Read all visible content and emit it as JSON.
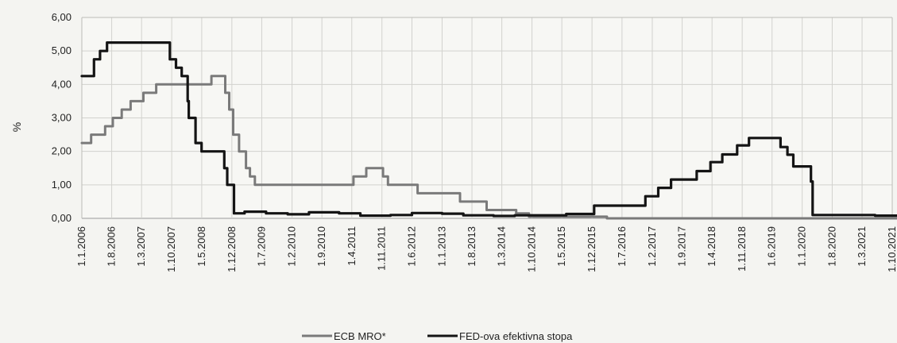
{
  "chart_data": {
    "type": "line",
    "ylabel": "%",
    "ylim": [
      0,
      6
    ],
    "y_ticks": [
      "0,00",
      "1,00",
      "2,00",
      "3,00",
      "4,00",
      "5,00",
      "6,00"
    ],
    "x_ticks": [
      "1.1.2006",
      "1.8.2006",
      "1.3.2007",
      "1.10.2007",
      "1.5.2008",
      "1.12.2008",
      "1.7.2009",
      "1.2.2010",
      "1.9.2010",
      "1.4.2011",
      "1.11.2011",
      "1.6.2012",
      "1.1.2013",
      "1.8.2013",
      "1.3.2014",
      "1.10.2014",
      "1.5.2015",
      "1.12.2015",
      "1.7.2016",
      "1.2.2017",
      "1.9.2017",
      "1.4.2018",
      "1.11.2018",
      "1.6.2019",
      "1.1.2020",
      "1.8.2020",
      "1.3.2021",
      "1.10.2021"
    ],
    "grid": true,
    "legend_position": "bottom-center",
    "series": [
      {
        "name": "ECB MRO*",
        "color": "#7a7a7a",
        "points": [
          [
            "2006-01-01",
            2.25
          ],
          [
            "2006-03-08",
            2.5
          ],
          [
            "2006-06-15",
            2.75
          ],
          [
            "2006-08-09",
            3.0
          ],
          [
            "2006-10-11",
            3.25
          ],
          [
            "2006-12-13",
            3.5
          ],
          [
            "2007-03-14",
            3.75
          ],
          [
            "2007-06-13",
            4.0
          ],
          [
            "2008-07-09",
            4.25
          ],
          [
            "2008-10-15",
            3.75
          ],
          [
            "2008-11-12",
            3.25
          ],
          [
            "2008-12-10",
            2.5
          ],
          [
            "2009-01-21",
            2.0
          ],
          [
            "2009-03-11",
            1.5
          ],
          [
            "2009-04-08",
            1.25
          ],
          [
            "2009-05-13",
            1.0
          ],
          [
            "2011-04-13",
            1.25
          ],
          [
            "2011-07-13",
            1.5
          ],
          [
            "2011-11-09",
            1.25
          ],
          [
            "2011-12-14",
            1.0
          ],
          [
            "2012-07-11",
            0.75
          ],
          [
            "2013-05-08",
            0.5
          ],
          [
            "2013-11-13",
            0.25
          ],
          [
            "2014-06-11",
            0.15
          ],
          [
            "2014-09-10",
            0.05
          ],
          [
            "2016-03-16",
            0.0
          ],
          [
            "2021-12-31",
            0.0
          ]
        ]
      },
      {
        "name": "FED-ova efektivna stopa",
        "color": "#141414",
        "points": [
          [
            "2006-01-01",
            4.25
          ],
          [
            "2006-03-28",
            4.75
          ],
          [
            "2006-05-10",
            5.0
          ],
          [
            "2006-06-29",
            5.25
          ],
          [
            "2007-09-18",
            4.75
          ],
          [
            "2007-10-31",
            4.5
          ],
          [
            "2007-12-11",
            4.25
          ],
          [
            "2008-01-22",
            3.5
          ],
          [
            "2008-01-30",
            3.0
          ],
          [
            "2008-03-18",
            2.25
          ],
          [
            "2008-04-30",
            2.0
          ],
          [
            "2008-10-08",
            1.5
          ],
          [
            "2008-10-29",
            1.0
          ],
          [
            "2008-12-16",
            0.15
          ],
          [
            "2009-03-01",
            0.2
          ],
          [
            "2009-08-01",
            0.15
          ],
          [
            "2010-01-01",
            0.12
          ],
          [
            "2010-06-01",
            0.18
          ],
          [
            "2011-01-01",
            0.15
          ],
          [
            "2011-06-01",
            0.08
          ],
          [
            "2012-01-01",
            0.1
          ],
          [
            "2012-06-01",
            0.16
          ],
          [
            "2013-01-01",
            0.14
          ],
          [
            "2013-06-01",
            0.09
          ],
          [
            "2014-01-01",
            0.07
          ],
          [
            "2014-06-01",
            0.09
          ],
          [
            "2015-06-01",
            0.13
          ],
          [
            "2015-12-16",
            0.38
          ],
          [
            "2016-12-14",
            0.66
          ],
          [
            "2017-03-15",
            0.91
          ],
          [
            "2017-06-14",
            1.16
          ],
          [
            "2017-12-13",
            1.41
          ],
          [
            "2018-03-21",
            1.68
          ],
          [
            "2018-06-13",
            1.91
          ],
          [
            "2018-09-26",
            2.18
          ],
          [
            "2018-12-19",
            2.4
          ],
          [
            "2019-07-31",
            2.13
          ],
          [
            "2019-09-18",
            1.9
          ],
          [
            "2019-10-30",
            1.55
          ],
          [
            "2020-03-03",
            1.1
          ],
          [
            "2020-03-15",
            0.1
          ],
          [
            "2021-06-01",
            0.08
          ],
          [
            "2021-12-31",
            0.08
          ]
        ]
      }
    ]
  }
}
